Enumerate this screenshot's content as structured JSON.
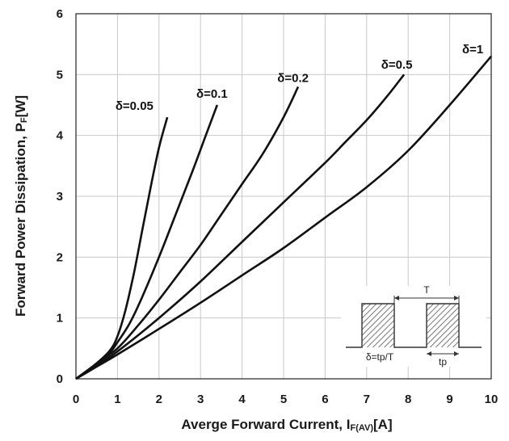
{
  "chart_data": {
    "type": "line",
    "xlabel_main": "Averge Forward Current, I",
    "xlabel_sub": "F(AV)",
    "xlabel_unit": "[A]",
    "ylabel_main": "Forward Power Dissipation, P",
    "ylabel_sub": "F",
    "ylabel_unit": "[W]",
    "xlim": [
      0,
      10
    ],
    "ylim": [
      0,
      6
    ],
    "x_ticks": [
      "0",
      "1",
      "2",
      "3",
      "4",
      "5",
      "6",
      "7",
      "8",
      "9",
      "10"
    ],
    "y_ticks": [
      "0",
      "1",
      "2",
      "3",
      "4",
      "5",
      "6"
    ],
    "grid": true,
    "series": [
      {
        "name": "δ=0.05",
        "x": [
          0,
          0.4,
          0.8,
          1.0,
          1.2,
          1.4,
          1.6,
          1.8,
          2.0,
          2.2
        ],
        "y": [
          0,
          0.2,
          0.45,
          0.7,
          1.15,
          1.75,
          2.45,
          3.15,
          3.8,
          4.3
        ]
      },
      {
        "name": "δ=0.1",
        "x": [
          0,
          0.4,
          0.8,
          1.0,
          1.3,
          1.6,
          2.0,
          2.4,
          2.8,
          3.1,
          3.4
        ],
        "y": [
          0,
          0.2,
          0.42,
          0.6,
          0.92,
          1.35,
          2.0,
          2.7,
          3.4,
          3.95,
          4.5
        ]
      },
      {
        "name": "δ=0.2",
        "x": [
          0,
          0.5,
          1.0,
          1.5,
          2.0,
          2.5,
          3.0,
          3.5,
          4.0,
          4.5,
          5.0,
          5.35
        ],
        "y": [
          0,
          0.25,
          0.5,
          0.88,
          1.3,
          1.75,
          2.2,
          2.7,
          3.2,
          3.7,
          4.3,
          4.8
        ]
      },
      {
        "name": "δ=0.5",
        "x": [
          0,
          0.5,
          1.0,
          2.0,
          3.0,
          4.0,
          5.0,
          6.0,
          6.5,
          7.0,
          7.5,
          7.9
        ],
        "y": [
          0,
          0.22,
          0.45,
          1.0,
          1.6,
          2.25,
          2.9,
          3.55,
          3.9,
          4.25,
          4.65,
          5.0
        ]
      },
      {
        "name": "δ=1",
        "x": [
          0,
          0.5,
          1.0,
          2.0,
          3.0,
          4.0,
          5.0,
          6.0,
          7.0,
          8.0,
          9.0,
          10.0
        ],
        "y": [
          0,
          0.2,
          0.4,
          0.82,
          1.25,
          1.7,
          2.15,
          2.65,
          3.15,
          3.75,
          4.5,
          5.3
        ]
      }
    ],
    "series_labels": [
      {
        "text": "δ=0.05",
        "x": 0.95,
        "y": 4.42
      },
      {
        "text": "δ=0.1",
        "x": 2.9,
        "y": 4.62
      },
      {
        "text": "δ=0.2",
        "x": 4.85,
        "y": 4.88
      },
      {
        "text": "δ=0.5",
        "x": 7.35,
        "y": 5.1
      },
      {
        "text": "δ=1",
        "x": 9.3,
        "y": 5.35
      }
    ],
    "inset": {
      "period_label": "T",
      "pulse_label": "tp",
      "duty_label": "δ=tp/T"
    }
  }
}
